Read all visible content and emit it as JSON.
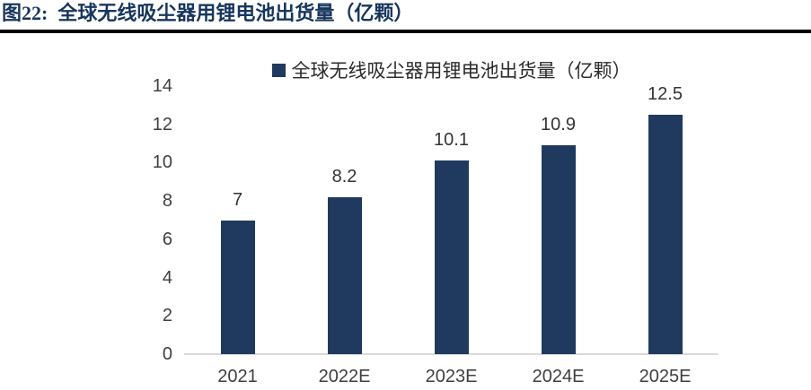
{
  "figure": {
    "title": "图22:  全球无线吸尘器用锂电池出货量（亿颗）"
  },
  "chart_data": {
    "type": "bar",
    "title": "",
    "legend": [
      "全球无线吸尘器用锂电池出货量（亿颗）"
    ],
    "legend_position": "top-center",
    "categories": [
      "2021",
      "2022E",
      "2023E",
      "2024E",
      "2025E"
    ],
    "values": [
      7,
      8.2,
      10.1,
      10.9,
      12.5
    ],
    "data_labels": [
      "7",
      "8.2",
      "10.1",
      "10.9",
      "12.5"
    ],
    "ylim": [
      0,
      14
    ],
    "yticks": [
      0,
      2,
      4,
      6,
      8,
      10,
      12,
      14
    ],
    "grid": false,
    "colors": {
      "bar": "#1F3A5E",
      "title_text": "#17365D",
      "legend_text": "#2b2b2b",
      "axis_text": "#3F3F3F",
      "data_label_text": "#333333",
      "axis_line": "#D9D9D9",
      "separator": "#000000",
      "background": "#FFFFFF"
    }
  }
}
